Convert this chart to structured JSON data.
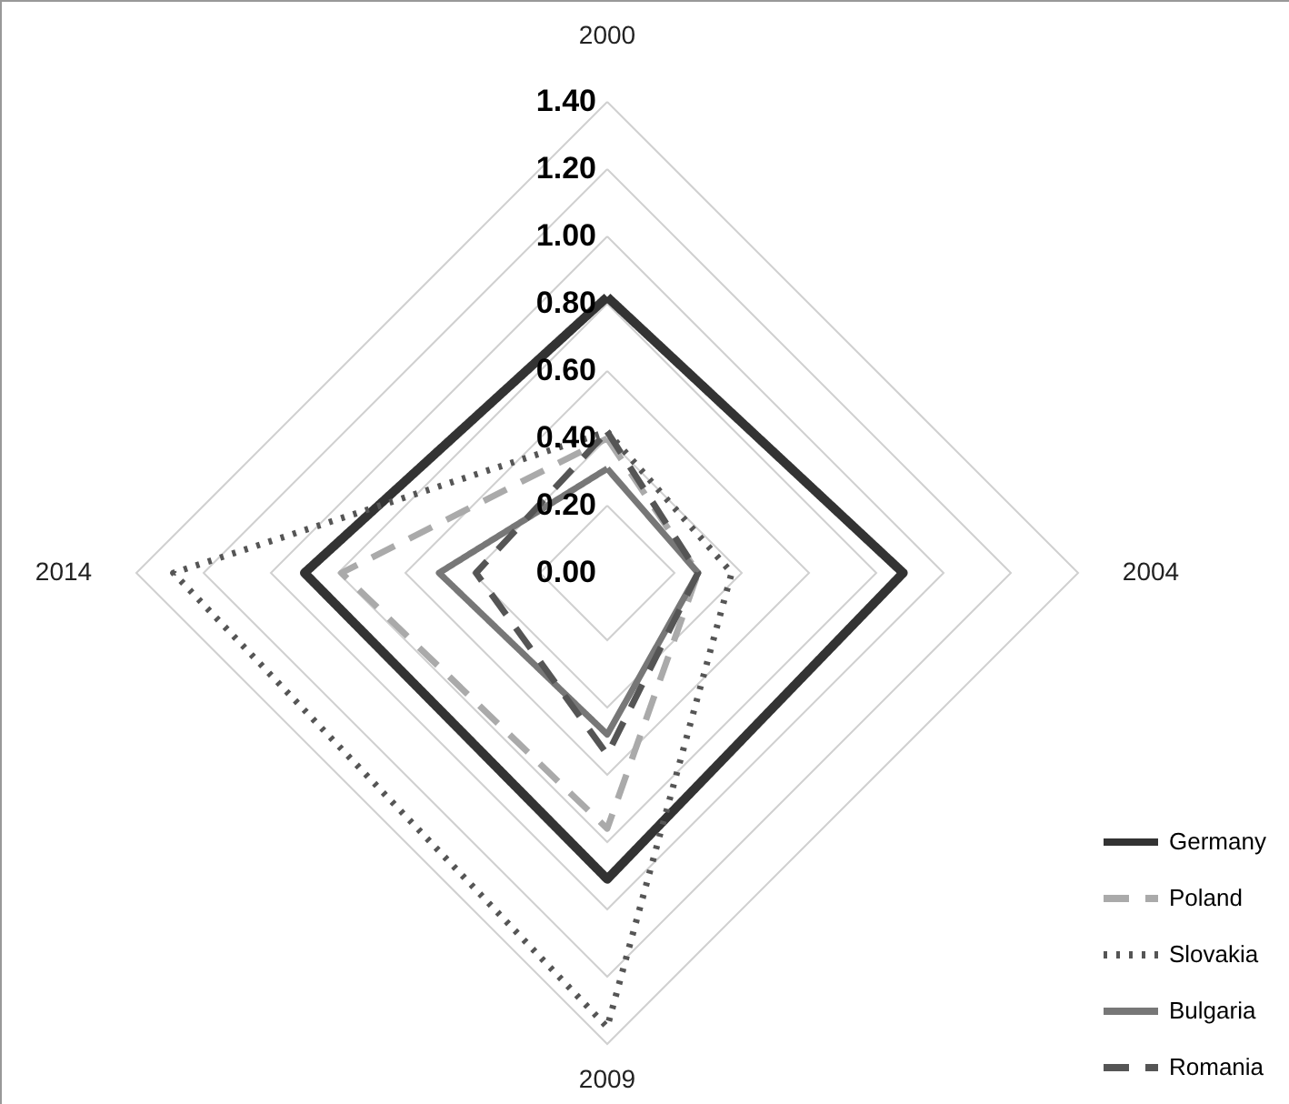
{
  "chart_data": {
    "type": "radar",
    "categories": [
      "2000",
      "2004",
      "2009",
      "2014"
    ],
    "ylim": [
      0,
      1.4
    ],
    "yticks": [
      {
        "value": 0,
        "label": "0.00"
      },
      {
        "value": 0.2,
        "label": "0.20"
      },
      {
        "value": 0.4,
        "label": "0.40"
      },
      {
        "value": 0.6,
        "label": "0.60"
      },
      {
        "value": 0.8,
        "label": "0.80"
      },
      {
        "value": 1.0,
        "label": "1.00"
      },
      {
        "value": 1.2,
        "label": "1.20"
      },
      {
        "value": 1.4,
        "label": "1.40"
      }
    ],
    "grid": true,
    "legend": "bottom right",
    "series": [
      {
        "name": "Germany",
        "color": "#333333",
        "line_style": "solid",
        "values": [
          0.82,
          0.88,
          0.91,
          0.9
        ]
      },
      {
        "name": "Poland",
        "color": "#aaaaaa",
        "line_style": "dashed",
        "values": [
          0.4,
          0.27,
          0.76,
          0.79
        ]
      },
      {
        "name": "Slovakia",
        "color": "#555555",
        "line_style": "dotted",
        "values": [
          0.42,
          0.37,
          1.35,
          1.29
        ]
      },
      {
        "name": "Bulgaria",
        "color": "#777777",
        "line_style": "solid",
        "values": [
          0.31,
          0.27,
          0.48,
          0.5
        ]
      },
      {
        "name": "Romania",
        "color": "#555555",
        "line_style": "dashed",
        "values": [
          0.42,
          0.27,
          0.54,
          0.39
        ]
      }
    ]
  }
}
